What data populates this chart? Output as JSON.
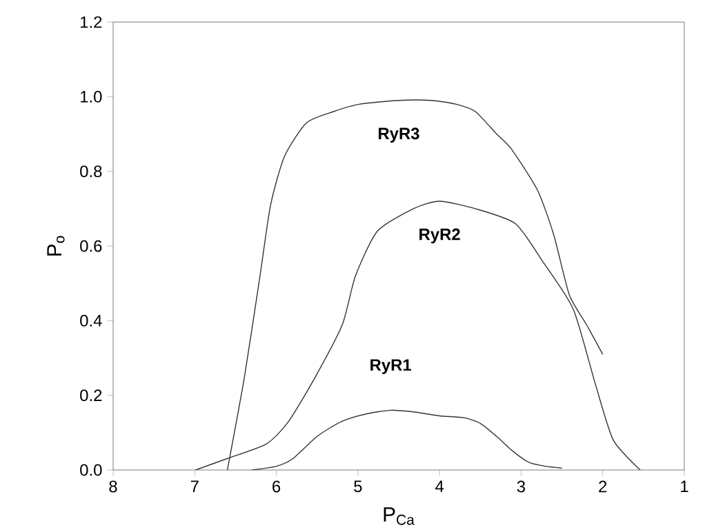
{
  "chart_data": {
    "type": "line",
    "xlabel": "P$_{Ca}$",
    "ylabel": "P$_{o}$",
    "xlim": [
      8,
      1
    ],
    "xticks": [
      8,
      7,
      6,
      5,
      4,
      3,
      2,
      1
    ],
    "ylim": [
      0,
      1.2
    ],
    "yticks": [
      {
        "value": 0,
        "label": "0.0"
      },
      {
        "value": 0.2,
        "label": "0.2"
      },
      {
        "value": 0.4,
        "label": "0.4"
      },
      {
        "value": 0.6,
        "label": "0.6"
      },
      {
        "value": 0.8,
        "label": "0.8"
      },
      {
        "value": 1.0,
        "label": "1.0"
      },
      {
        "value": 1.2,
        "label": "1.2"
      }
    ],
    "grid": false,
    "legend": false,
    "marker": "none",
    "line_style": "solid",
    "series": [
      {
        "name": "RyR3",
        "color": "#333333",
        "x": [
          6.6,
          6.39,
          6.2,
          6.07,
          5.9,
          5.63,
          5.3,
          4.98,
          4.5,
          4.1,
          3.8,
          3.56,
          3.3,
          3.12,
          2.8,
          2.6,
          2.41,
          2.2,
          2.0
        ],
        "values": [
          0,
          0.25,
          0.52,
          0.71,
          0.84,
          0.93,
          0.96,
          0.98,
          0.99,
          0.99,
          0.98,
          0.96,
          0.9,
          0.86,
          0.75,
          0.63,
          0.47,
          0.39,
          0.31
        ]
      },
      {
        "name": "RyR2",
        "color": "#333333",
        "x": [
          6.99,
          6.61,
          6.12,
          5.85,
          5.52,
          5.19,
          5.03,
          4.76,
          4.32,
          4.0,
          3.56,
          3.07,
          2.74,
          2.36,
          2.09,
          1.87,
          1.54
        ],
        "values": [
          0,
          0.03,
          0.07,
          0.13,
          0.25,
          0.39,
          0.52,
          0.64,
          0.7,
          0.72,
          0.7,
          0.66,
          0.56,
          0.43,
          0.23,
          0.08,
          0
        ]
      },
      {
        "name": "RyR1",
        "color": "#333333",
        "x": [
          6.3,
          6.0,
          5.8,
          5.5,
          5.2,
          4.9,
          4.6,
          4.3,
          4.0,
          3.7,
          3.5,
          3.3,
          3.1,
          2.9,
          2.7,
          2.5
        ],
        "values": [
          0,
          0.01,
          0.03,
          0.09,
          0.13,
          0.15,
          0.16,
          0.155,
          0.145,
          0.14,
          0.125,
          0.09,
          0.05,
          0.02,
          0.01,
          0.005
        ]
      }
    ]
  }
}
